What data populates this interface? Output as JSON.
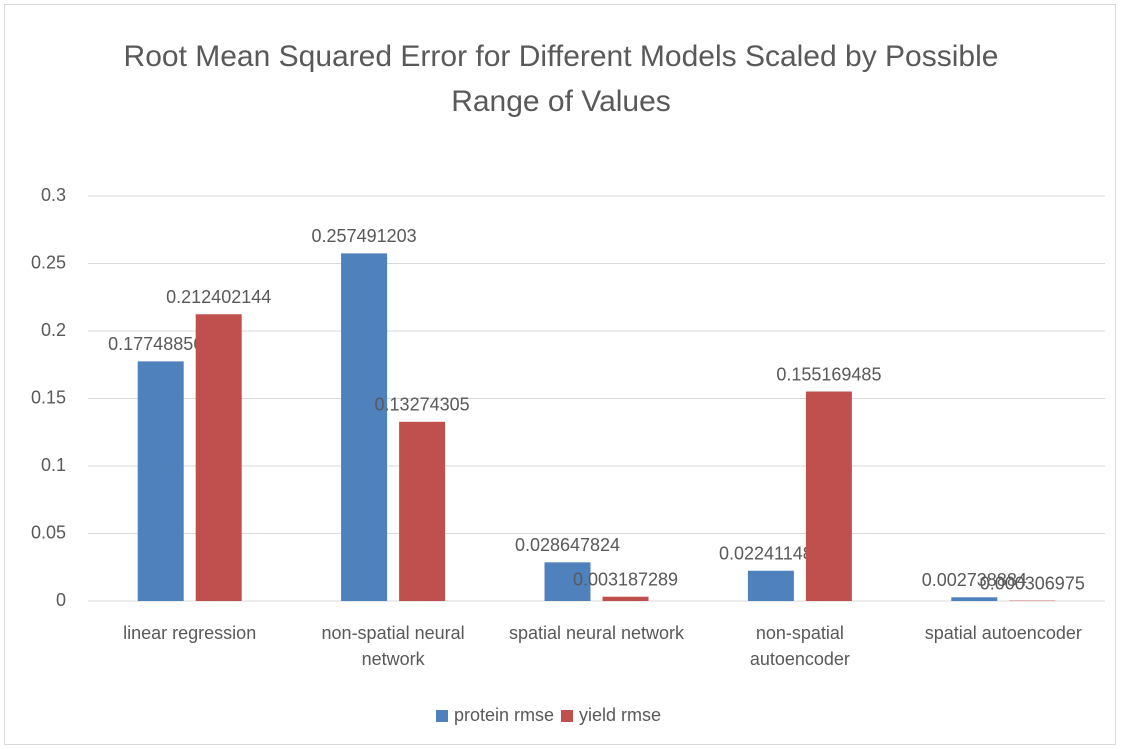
{
  "chart_data": {
    "type": "bar",
    "title": "Root Mean Squared Error for Different Models Scaled by Possible Range of Values",
    "categories": [
      "linear regression",
      "non-spatial neural network",
      "spatial neural network",
      "non-spatial autoencoder",
      "spatial autoencoder"
    ],
    "series": [
      {
        "name": "protein rmse",
        "color": "#4f81bd",
        "values": [
          0.177488569,
          0.257491203,
          0.028647824,
          0.022411485,
          0.002738884
        ]
      },
      {
        "name": "yield rmse",
        "color": "#c0504d",
        "values": [
          0.212402144,
          0.13274305,
          0.003187289,
          0.155169485,
          0.000306975
        ]
      }
    ],
    "ylim": [
      0,
      0.3
    ],
    "yticks": [
      0,
      0.05,
      0.1,
      0.15,
      0.2,
      0.25,
      0.3
    ],
    "grid": true,
    "legend": "bottom"
  }
}
